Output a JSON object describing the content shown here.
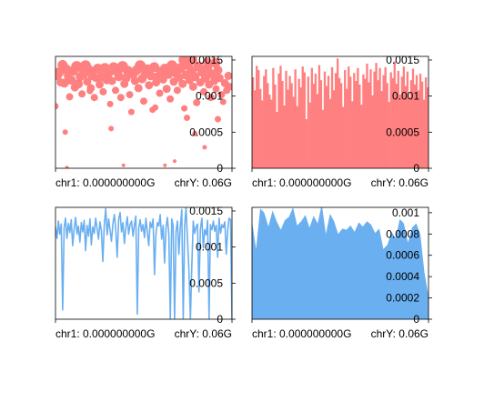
{
  "colors": {
    "red": "#ff8080",
    "blue": "#6aaff0",
    "axis": "#000000",
    "background": "#ffffff"
  },
  "chart_data": [
    {
      "type": "scatter",
      "color": "#ff8080",
      "xtick_labels": [
        "chr1: 0.000000000G",
        "chrY: 0.06G"
      ],
      "ytick_labels": [
        "0.0015",
        "0.001",
        "0.0005",
        "0"
      ],
      "yticks": [
        0.0015,
        0.001,
        0.0005,
        0
      ],
      "ylim": [
        0,
        0.00155
      ],
      "xlim": [
        0,
        1
      ],
      "points": [
        [
          0.0,
          0.00086,
          5
        ],
        [
          0.01,
          0.00128,
          8
        ],
        [
          0.02,
          0.00133,
          9
        ],
        [
          0.03,
          0.00119,
          7
        ],
        [
          0.04,
          0.00143,
          9
        ],
        [
          0.05,
          0.00118,
          8
        ],
        [
          0.055,
          0.0005,
          4
        ],
        [
          0.06,
          0.00137,
          9
        ],
        [
          0.07,
          0.00128,
          7
        ],
        [
          0.08,
          0.00099,
          6
        ],
        [
          0.09,
          0.00122,
          8
        ],
        [
          0.1,
          0.00135,
          9
        ],
        [
          0.11,
          0.00112,
          7
        ],
        [
          0.12,
          0.00141,
          10
        ],
        [
          0.13,
          0.00117,
          8
        ],
        [
          0.14,
          0.00127,
          8
        ],
        [
          0.15,
          0.00103,
          6
        ],
        [
          0.16,
          0.00131,
          9
        ],
        [
          0.17,
          0.00142,
          10
        ],
        [
          0.18,
          0.0012,
          7
        ],
        [
          0.19,
          0.00136,
          9
        ],
        [
          0.2,
          0.00111,
          7
        ],
        [
          0.21,
          0.00128,
          8
        ],
        [
          0.22,
          0.00098,
          6
        ],
        [
          0.23,
          0.00125,
          7
        ],
        [
          0.24,
          0.00138,
          9
        ],
        [
          0.25,
          0.00116,
          7
        ],
        [
          0.26,
          0.00127,
          8
        ],
        [
          0.27,
          0.00106,
          6
        ],
        [
          0.28,
          0.00139,
          9
        ],
        [
          0.29,
          0.00122,
          7
        ],
        [
          0.3,
          0.00131,
          8
        ],
        [
          0.31,
          0.00089,
          5
        ],
        [
          0.32,
          0.00121,
          7
        ],
        [
          0.33,
          0.0014,
          9
        ],
        [
          0.34,
          0.00108,
          6
        ],
        [
          0.35,
          0.00134,
          9
        ],
        [
          0.36,
          0.00127,
          8
        ],
        [
          0.37,
          0.00098,
          6
        ],
        [
          0.38,
          0.00141,
          10
        ],
        [
          0.39,
          0.00117,
          7
        ],
        [
          0.4,
          0.00125,
          8
        ],
        [
          0.41,
          0.00135,
          9
        ],
        [
          0.42,
          0.00102,
          6
        ],
        [
          0.43,
          0.00078,
          5
        ],
        [
          0.44,
          0.0013,
          8
        ],
        [
          0.45,
          0.00121,
          7
        ],
        [
          0.46,
          0.00136,
          9
        ],
        [
          0.47,
          0.00111,
          7
        ],
        [
          0.48,
          0.00142,
          10
        ],
        [
          0.49,
          0.00124,
          8
        ],
        [
          0.5,
          0.00093,
          6
        ],
        [
          0.51,
          0.00131,
          8
        ],
        [
          0.52,
          0.00137,
          9
        ],
        [
          0.53,
          0.00115,
          7
        ],
        [
          0.54,
          0.00128,
          8
        ],
        [
          0.55,
          0.00081,
          5
        ],
        [
          0.56,
          0.0014,
          9
        ],
        [
          0.57,
          0.00119,
          7
        ],
        [
          0.58,
          0.00127,
          8
        ],
        [
          0.59,
          0.00104,
          6
        ],
        [
          0.6,
          0.00134,
          9
        ],
        [
          0.61,
          0.00123,
          7
        ],
        [
          0.62,
          0.00138,
          9
        ],
        [
          0.63,
          0.0011,
          7
        ],
        [
          0.64,
          0.0013,
          8
        ],
        [
          0.65,
          0.00096,
          6
        ],
        [
          0.66,
          0.00142,
          10
        ],
        [
          0.67,
          0.0012,
          7
        ],
        [
          0.68,
          0.00133,
          9
        ],
        [
          0.69,
          0.00108,
          6
        ],
        [
          0.7,
          0.00126,
          8
        ],
        [
          0.71,
          0.00139,
          9
        ],
        [
          0.72,
          0.00117,
          7
        ],
        [
          0.73,
          0.00083,
          5
        ],
        [
          0.74,
          0.00129,
          8
        ],
        [
          0.75,
          0.00144,
          10
        ],
        [
          0.76,
          0.00122,
          7
        ],
        [
          0.77,
          0.00134,
          9
        ],
        [
          0.78,
          0.00113,
          7
        ],
        [
          0.79,
          0.00127,
          8
        ],
        [
          0.8,
          0.00091,
          6
        ],
        [
          0.81,
          0.00141,
          9
        ],
        [
          0.82,
          0.00119,
          7
        ],
        [
          0.83,
          0.00133,
          8
        ],
        [
          0.84,
          0.00106,
          6
        ],
        [
          0.85,
          0.00125,
          8
        ],
        [
          0.86,
          0.00138,
          9
        ],
        [
          0.87,
          0.00116,
          7
        ],
        [
          0.88,
          0.00098,
          6
        ],
        [
          0.89,
          0.0013,
          8
        ],
        [
          0.9,
          0.00121,
          7
        ],
        [
          0.91,
          0.0011,
          6
        ],
        [
          0.92,
          0.00136,
          8
        ],
        [
          0.93,
          0.00125,
          7
        ],
        [
          0.94,
          0.00102,
          6
        ],
        [
          0.95,
          0.00092,
          5
        ],
        [
          0.96,
          0.00118,
          7
        ],
        [
          0.97,
          0.00108,
          6
        ],
        [
          0.98,
          0.00128,
          7
        ],
        [
          0.99,
          0.00113,
          6
        ],
        [
          0.065,
          1e-05,
          2
        ],
        [
          0.195,
          0.00107,
          5
        ],
        [
          0.315,
          0.00055,
          4
        ],
        [
          0.385,
          4e-05,
          2
        ],
        [
          0.565,
          0.00084,
          5
        ],
        [
          0.62,
          4e-05,
          2
        ],
        [
          0.675,
          0.0001,
          2
        ],
        [
          0.745,
          0.0007,
          5
        ],
        [
          0.79,
          0.00048,
          4
        ],
        [
          0.845,
          0.00029,
          3
        ],
        [
          0.92,
          0.00068,
          5
        ],
        [
          0.725,
          0.0015,
          9
        ],
        [
          0.775,
          0.00151,
          9
        ],
        [
          0.905,
          0.00146,
          9
        ],
        [
          0.86,
          0.00147,
          8
        ]
      ]
    },
    {
      "type": "bar",
      "color": "#ff8080",
      "xtick_labels": [
        "chr1: 0.000000000G",
        "chrY: 0.06G"
      ],
      "ytick_labels": [
        "0.0015",
        "0.001",
        "0.0005",
        "0"
      ],
      "yticks": [
        0.0015,
        0.001,
        0.0005,
        0
      ],
      "ylim": [
        0,
        0.00155
      ],
      "xlim": [
        0,
        1
      ],
      "values": [
        0.00126,
        0.00108,
        0.00142,
        0.00136,
        0.0011,
        0.00094,
        0.00128,
        0.00137,
        0.00118,
        0.00102,
        0.00095,
        0.00139,
        0.00116,
        0.00078,
        0.00131,
        0.00142,
        0.00121,
        0.00087,
        0.00135,
        0.00109,
        0.00128,
        0.00118,
        0.00099,
        0.00137,
        0.00086,
        0.00124,
        0.00112,
        0.00141,
        0.00133,
        0.00068,
        0.00127,
        0.00091,
        0.00139,
        0.00117,
        0.00131,
        0.00103,
        0.00143,
        0.00122,
        0.00081,
        0.00134,
        0.00114,
        0.00128,
        0.00096,
        0.0014,
        0.00108,
        0.00132,
        0.00152,
        0.00125,
        0.00118,
        0.00085,
        0.00136,
        0.0011,
        0.00141,
        0.00127,
        0.00093,
        0.00132,
        0.00121,
        0.00139,
        0.00116,
        0.00088,
        0.0013,
        0.00124,
        0.00145,
        0.00119,
        0.00137,
        0.00101,
        0.00134,
        0.00146,
        0.00122,
        0.00139,
        0.00107,
        0.00129,
        0.0014,
        0.00118,
        0.00092,
        0.00133,
        0.00125,
        0.00148,
        0.00117,
        0.00135,
        0.00102,
        0.00127,
        0.00141,
        0.00114,
        0.00134,
        0.00098,
        0.00122,
        0.00138,
        0.00116,
        0.00129,
        0.00108,
        0.00131,
        0.0012,
        0.00095,
        0.00126,
        0.00112
      ]
    },
    {
      "type": "line",
      "color": "#6aaff0",
      "xtick_labels": [
        "chr1: 0.000000000G",
        "chrY: 0.06G"
      ],
      "ytick_labels": [
        "0.0015",
        "0.001",
        "0.0005",
        "0"
      ],
      "yticks": [
        0.0015,
        0.001,
        0.0005,
        0
      ],
      "ylim": [
        0,
        0.00155
      ],
      "xlim": [
        0,
        1
      ],
      "values": [
        0.00128,
        0.00112,
        0.00136,
        0.00118,
        0.00132,
        0.00013,
        0.00127,
        0.0014,
        0.00112,
        0.00133,
        0.0012,
        0.00138,
        0.00102,
        0.00125,
        0.00141,
        0.00118,
        0.00129,
        0.00107,
        0.00134,
        0.00121,
        0.00137,
        0.00095,
        0.0013,
        0.00115,
        0.00139,
        0.00103,
        0.00128,
        0.00119,
        0.0014,
        0.00126,
        0.00111,
        0.00135,
        0.00122,
        0.0008,
        0.0013,
        0.00153,
        0.00117,
        0.00139,
        0.00124,
        0.00108,
        0.00132,
        0.00145,
        0.00125,
        0.00086,
        0.00138,
        0.00148,
        0.00121,
        0.00134,
        0.00105,
        0.00127,
        0.00142,
        0.00118,
        0.00131,
        0.00136,
        0.00115,
        0.0013,
        0.00143,
        7e-05,
        0.00126,
        0.00138,
        0.00122,
        0.00131,
        0.00113,
        0.0014,
        0.00121,
        0.00102,
        0.00135,
        0.00127,
        0.00139,
        0.00062,
        0.00118,
        0.00134,
        0.00129,
        0.00145,
        0.00111,
        0.0013,
        0.00078,
        0.00126,
        0.00141,
        0.00117,
        0.0,
        0.00139,
        0.00129,
        0.0,
        0.00122,
        0.00136,
        0.0009,
        0.00128,
        0.00152,
        0.0,
        0.00131,
        0.00154,
        0.0011,
        0.00067,
        0.0,
        0.00072,
        0.00136,
        0.00119,
        0.00128,
        0.00132,
        0.00038,
        0.00125,
        0.0014,
        0.00099,
        0.00124,
        0.00117,
        0.00137,
        0.0,
        0.00131,
        0.00124,
        0.00136,
        0.00122,
        0.0013,
        0.00086,
        0.0014,
        0.00119,
        0.00131,
        0.00127,
        0.00135,
        0.0009,
        0.00124,
        0.0014,
        0.00138,
        0.0
      ]
    },
    {
      "type": "area",
      "color": "#6aaff0",
      "xtick_labels": [
        "chr1: 0.000000000G",
        "chrY: 0.06G"
      ],
      "ytick_labels": [
        "0.001",
        "0.0008",
        "0.0006",
        "0.0004",
        "0.0002",
        "0"
      ],
      "yticks": [
        0.001,
        0.0008,
        0.0006,
        0.0004,
        0.0002,
        0
      ],
      "ylim": [
        0,
        0.00105
      ],
      "xlim": [
        0,
        1
      ],
      "values": [
        0.00092,
        0.00066,
        0.00104,
        0.001,
        0.00087,
        0.00102,
        0.00092,
        0.00084,
        0.00093,
        0.00096,
        0.00105,
        0.00088,
        0.00092,
        0.00098,
        0.00086,
        0.00097,
        0.0009,
        0.00108,
        0.0008,
        0.00099,
        0.00092,
        0.0008,
        0.00085,
        0.00084,
        0.00088,
        0.00082,
        0.00091,
        0.00087,
        0.00092,
        0.00089,
        0.00081,
        0.00085,
        0.00066,
        0.0007,
        0.00082,
        0.00076,
        0.00094,
        0.0009,
        0.00072,
        0.00086,
        0.0009,
        0.0008,
        0.00044,
        0.00022
      ]
    }
  ]
}
